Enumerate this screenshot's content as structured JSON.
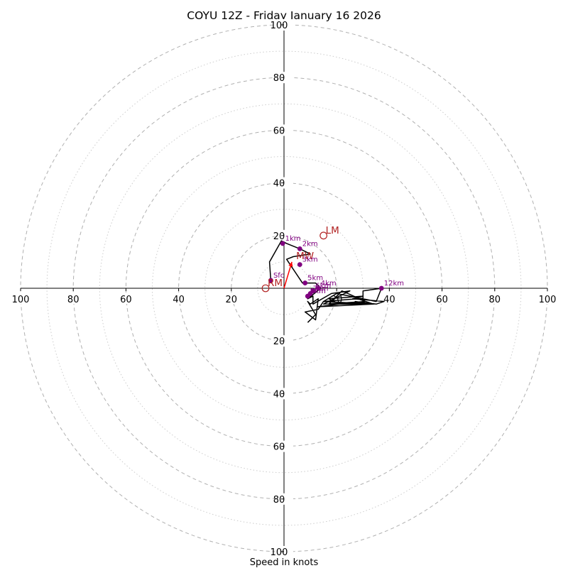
{
  "chart_data": {
    "type": "hodograph",
    "title": "COYU 12Z - Friday January 16 2026",
    "xlabel": "Speed in knots",
    "ylabel": "",
    "xlim": [
      -100,
      100
    ],
    "ylim": [
      -100,
      100
    ],
    "rings_major": [
      20,
      40,
      60,
      80,
      100
    ],
    "rings_minor": [
      10,
      30,
      50,
      70,
      90
    ],
    "x_ticks": [
      "100",
      "80",
      "60",
      "40",
      "20",
      "20",
      "40",
      "60",
      "80",
      "100"
    ],
    "x_tick_values": [
      -100,
      -80,
      -60,
      -40,
      -20,
      20,
      40,
      60,
      80,
      100
    ],
    "y_ticks": [
      "100",
      "80",
      "60",
      "40",
      "20",
      "20",
      "40",
      "60",
      "80",
      "100"
    ],
    "y_tick_values": [
      100,
      80,
      60,
      40,
      20,
      -20,
      -40,
      -60,
      -80,
      -100
    ],
    "hodograph_trace": [
      [
        -5,
        3
      ],
      [
        -5.5,
        10
      ],
      [
        -1,
        18
      ],
      [
        1,
        17
      ],
      [
        6,
        15
      ],
      [
        10,
        13
      ],
      [
        3.5,
        12
      ],
      [
        1,
        11
      ],
      [
        3,
        8
      ],
      [
        7,
        2
      ],
      [
        12,
        2
      ],
      [
        14,
        0
      ],
      [
        9,
        -4
      ],
      [
        11,
        -3
      ],
      [
        11,
        -6
      ],
      [
        18,
        -2
      ],
      [
        25,
        -1
      ],
      [
        15,
        -6
      ],
      [
        31,
        -5
      ],
      [
        22,
        -1
      ],
      [
        17,
        -6
      ],
      [
        30,
        -6
      ],
      [
        30,
        -1
      ],
      [
        37,
        0
      ],
      [
        35,
        -5
      ],
      [
        20,
        -2
      ],
      [
        15,
        -5
      ],
      [
        34,
        -6
      ],
      [
        27,
        -5
      ],
      [
        35,
        -6
      ],
      [
        38,
        -5
      ],
      [
        26,
        -4
      ],
      [
        30,
        -3
      ],
      [
        17,
        -4
      ],
      [
        21,
        -6
      ],
      [
        13,
        -7
      ],
      [
        34,
        -6
      ],
      [
        28,
        -4
      ],
      [
        15,
        -5
      ],
      [
        13,
        -8
      ],
      [
        8,
        -9
      ],
      [
        12,
        -12
      ],
      [
        13,
        -4
      ],
      [
        10,
        -6
      ],
      [
        9,
        -5
      ],
      [
        12,
        -10
      ],
      [
        9,
        -13
      ]
    ],
    "height_points": [
      {
        "label": "Sfc",
        "u": -5,
        "v": 3
      },
      {
        "label": "1km",
        "u": -0.5,
        "v": 17
      },
      {
        "label": "2km",
        "u": 6,
        "v": 15
      },
      {
        "label": "3km",
        "u": 6,
        "v": 9
      },
      {
        "label": "5km",
        "u": 8,
        "v": 2
      },
      {
        "label": "4km",
        "u": 13,
        "v": 0
      },
      {
        "label": "6km",
        "u": 11,
        "v": -1
      },
      {
        "label": "7km",
        "u": 10,
        "v": -2
      },
      {
        "label": "8km",
        "u": 9,
        "v": -3
      },
      {
        "label": "9km",
        "u": 9,
        "v": -3
      },
      {
        "label": "12km",
        "u": 37,
        "v": 0
      }
    ],
    "mean_wind_vector": {
      "label": "MW",
      "u": 3,
      "v": 10
    },
    "storm_motion": [
      {
        "label": "LM",
        "u": 15,
        "v": 20
      },
      {
        "label": "RM",
        "u": -7,
        "v": 0
      }
    ],
    "colors": {
      "trace": "#000000",
      "height_points": "#800080",
      "storm_motion": "#b22222",
      "mean_wind_vector": "#ff0000",
      "grid": "#b0b0b0"
    }
  }
}
